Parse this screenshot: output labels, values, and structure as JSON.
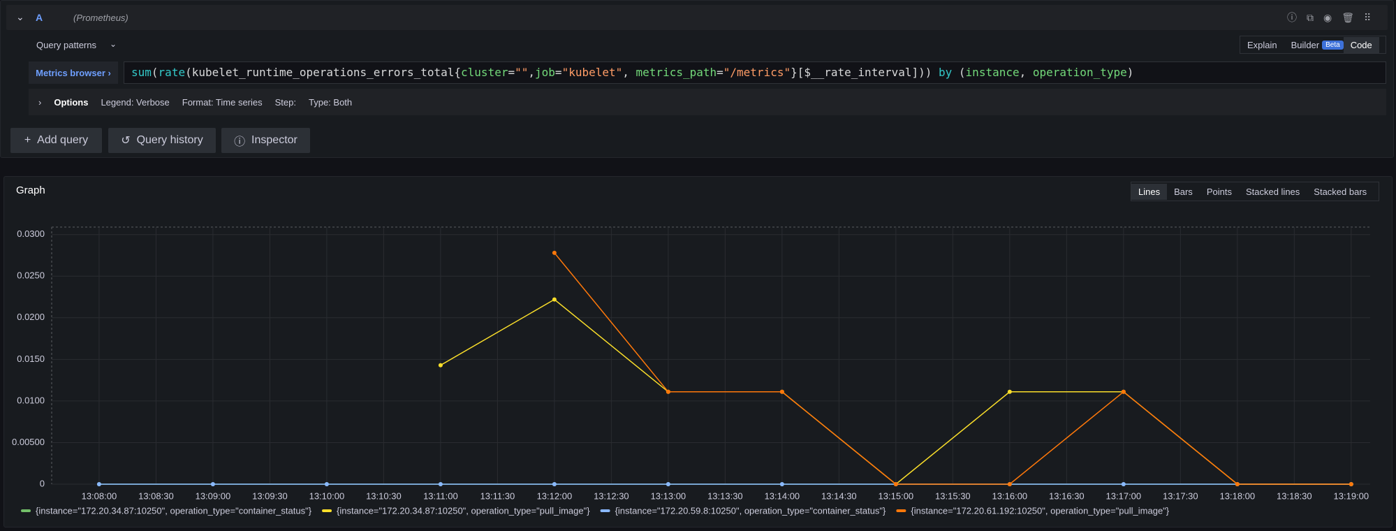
{
  "query_row": {
    "ref": "A",
    "datasource": "(Prometheus)",
    "patterns": "Query patterns",
    "modes": [
      "Explain",
      "Builder",
      "Code"
    ],
    "beta": "Beta"
  },
  "editor": {
    "metrics_browser": "Metrics browser",
    "tokens": [
      "sum",
      "(",
      "rate",
      "(kubelet_runtime_operations_errors_total{",
      "cluster",
      "=",
      "\"\"",
      ",",
      "job",
      "=",
      "\"kubelet\"",
      ", ",
      "metrics_path",
      "=",
      "\"/metrics\"",
      "}[$__rate_interval])) ",
      "by",
      " (",
      "instance",
      ", ",
      "operation_type",
      ")"
    ]
  },
  "options": {
    "title": "Options",
    "items": [
      "Legend: Verbose",
      "Format: Time series",
      "Step:",
      "Type: Both"
    ]
  },
  "buttons": [
    "Add query",
    "Query history",
    "Inspector"
  ],
  "graph_modes": [
    "Lines",
    "Bars",
    "Points",
    "Stacked lines",
    "Stacked bars"
  ],
  "chart_data": {
    "type": "line",
    "title": "Graph",
    "x": [
      "13:08:00",
      "13:09:00",
      "13:10:00",
      "13:11:00",
      "13:12:00",
      "13:13:00",
      "13:14:00",
      "13:15:00",
      "13:16:00",
      "13:17:00",
      "13:18:00",
      "13:19:00"
    ],
    "series": [
      {
        "name": "{instance=\"172.20.34.87:10250\", operation_type=\"container_status\"}",
        "color": "#73bf69",
        "values": [
          0,
          0,
          0,
          0,
          0,
          0,
          0,
          0,
          0,
          0,
          0,
          0
        ]
      },
      {
        "name": "{instance=\"172.20.34.87:10250\", operation_type=\"pull_image\"}",
        "color": "#fade2a",
        "values": [
          null,
          null,
          null,
          0.0143,
          0.0222,
          0.0111,
          0.0111,
          0,
          0.0111,
          0.0111,
          0,
          0
        ]
      },
      {
        "name": "{instance=\"172.20.59.8:10250\", operation_type=\"container_status\"}",
        "color": "#8ab8ff",
        "values": [
          0,
          0,
          0,
          0,
          0,
          0,
          0,
          0,
          0,
          0,
          0,
          0
        ]
      },
      {
        "name": "{instance=\"172.20.61.192:10250\", operation_type=\"pull_image\"}",
        "color": "#ff780a",
        "values": [
          null,
          null,
          null,
          null,
          0.0278,
          0.0111,
          0.0111,
          0,
          0,
          0.0111,
          0,
          0
        ]
      }
    ],
    "xlim": [
      "13:07:35",
      "13:19:10"
    ],
    "xticks": [
      "13:08:00",
      "13:08:30",
      "13:09:00",
      "13:09:30",
      "13:10:00",
      "13:10:30",
      "13:11:00",
      "13:11:30",
      "13:12:00",
      "13:12:30",
      "13:13:00",
      "13:13:30",
      "13:14:00",
      "13:14:30",
      "13:15:00",
      "13:15:30",
      "13:16:00",
      "13:16:30",
      "13:17:00",
      "13:17:30",
      "13:18:00",
      "13:18:30",
      "13:19:00"
    ],
    "ylim": [
      0,
      0.0309
    ],
    "yticks": [
      0,
      {
        "value": 0.005,
        "label": "0.00500"
      },
      {
        "value": 0.01,
        "label": "0.0100"
      },
      {
        "value": 0.015,
        "label": "0.0150"
      },
      {
        "value": 0.02,
        "label": "0.0200"
      },
      {
        "value": 0.025,
        "label": "0.0250"
      },
      {
        "value": 0.03,
        "label": "0.0300"
      }
    ],
    "grid": true,
    "legend": "bottom"
  }
}
